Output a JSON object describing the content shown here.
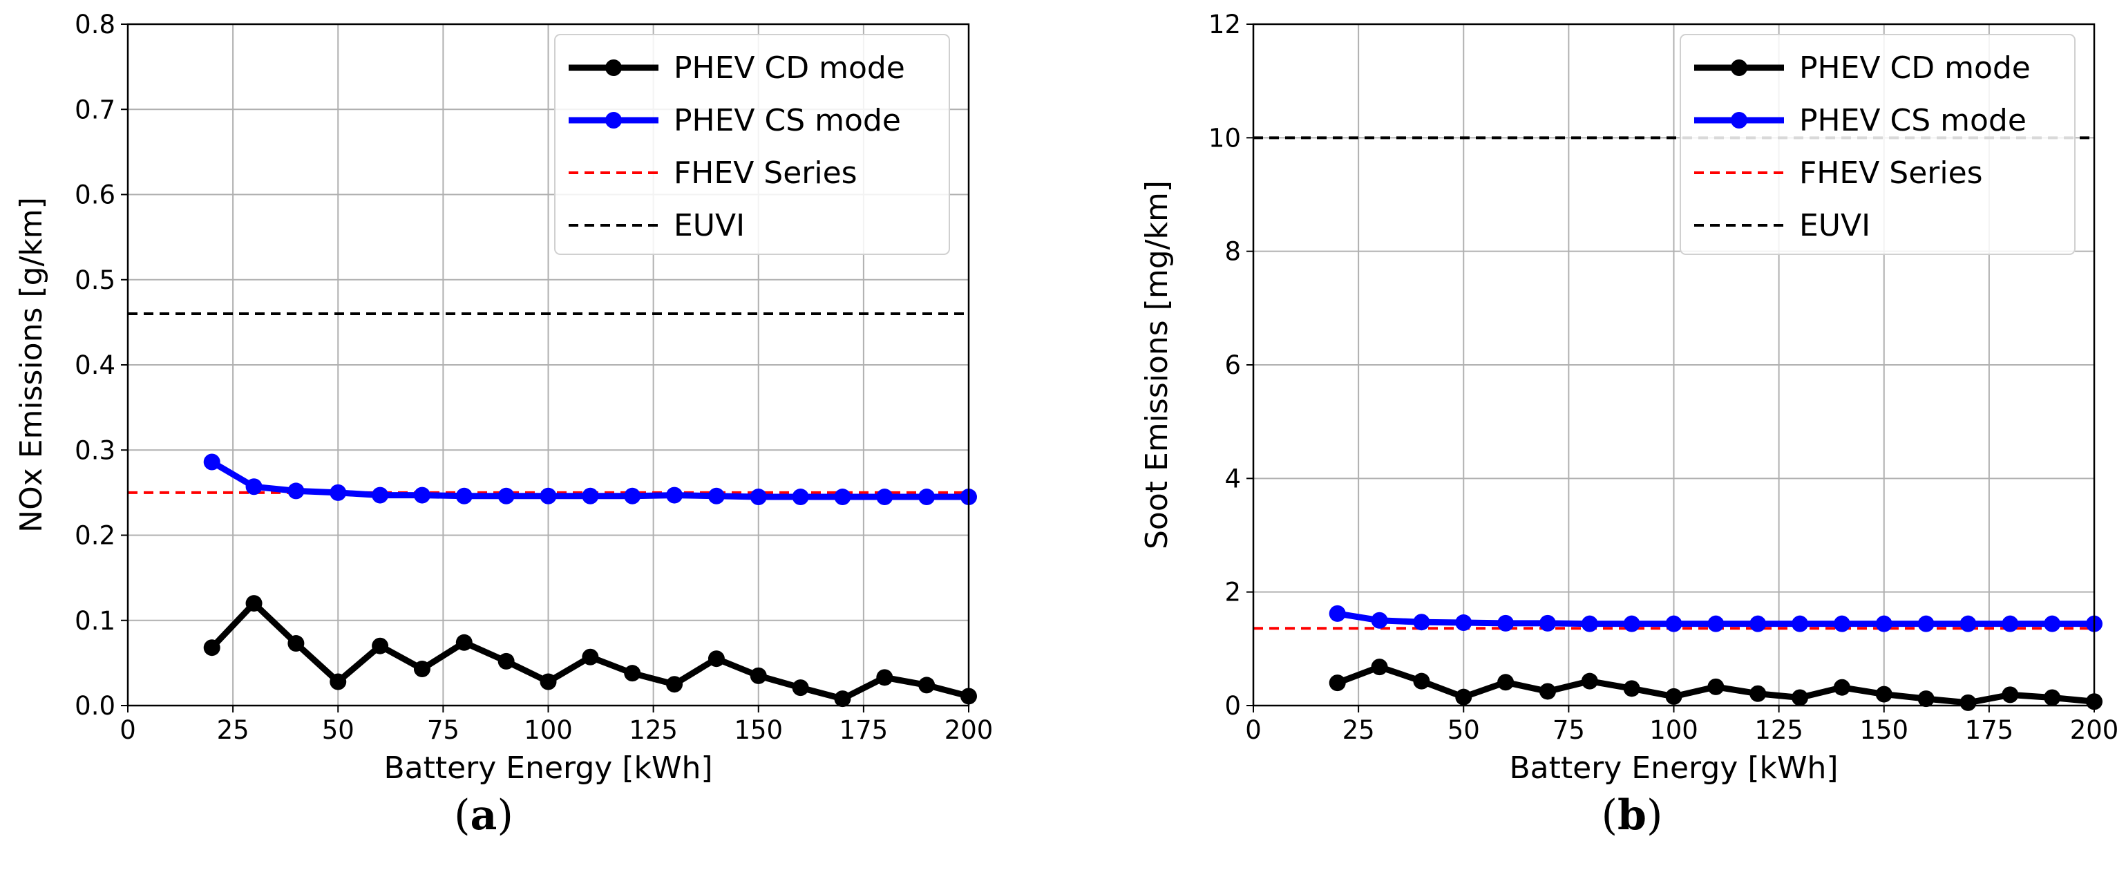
{
  "chart_data": [
    {
      "type": "line",
      "panel_label": "a",
      "caption_open": "(",
      "caption_close": ")",
      "xlabel": "Battery Energy [kWh]",
      "ylabel": "NOx Emissions [g/km]",
      "xlim": [
        0,
        200
      ],
      "ylim": [
        0,
        0.8
      ],
      "xticks": [
        0,
        25,
        50,
        75,
        100,
        125,
        150,
        175,
        200
      ],
      "yticks": [
        0.0,
        0.1,
        0.2,
        0.3,
        0.4,
        0.5,
        0.6,
        0.7,
        0.8
      ],
      "ytick_labels": [
        "0.0",
        "0.1",
        "0.2",
        "0.3",
        "0.4",
        "0.5",
        "0.6",
        "0.7",
        "0.8"
      ],
      "grid": true,
      "legend_position": "top-right",
      "x": [
        20,
        30,
        40,
        50,
        60,
        70,
        80,
        90,
        100,
        110,
        120,
        130,
        140,
        150,
        160,
        170,
        180,
        190,
        200
      ],
      "series": [
        {
          "name": "PHEV CD mode",
          "color": "#000000",
          "style": "solid-marker",
          "values": [
            0.068,
            0.12,
            0.073,
            0.028,
            0.07,
            0.043,
            0.074,
            0.052,
            0.028,
            0.057,
            0.038,
            0.025,
            0.055,
            0.035,
            0.021,
            0.008,
            0.033,
            0.024,
            0.011
          ]
        },
        {
          "name": "PHEV CS mode",
          "color": "#0000ff",
          "style": "solid-marker",
          "values": [
            0.286,
            0.257,
            0.252,
            0.25,
            0.247,
            0.247,
            0.246,
            0.246,
            0.246,
            0.246,
            0.246,
            0.247,
            0.246,
            0.245,
            0.245,
            0.245,
            0.245,
            0.245,
            0.245
          ]
        },
        {
          "name": "FHEV Series",
          "color": "#ff0000",
          "style": "dashed",
          "constant": 0.25
        },
        {
          "name": "EUVI",
          "color": "#000000",
          "style": "dashed",
          "constant": 0.46
        }
      ]
    },
    {
      "type": "line",
      "panel_label": "b",
      "caption_open": "(",
      "caption_close": ")",
      "xlabel": "Battery Energy [kWh]",
      "ylabel": "Soot Emissions [mg/km]",
      "xlim": [
        0,
        200
      ],
      "ylim": [
        0,
        12
      ],
      "xticks": [
        0,
        25,
        50,
        75,
        100,
        125,
        150,
        175,
        200
      ],
      "yticks": [
        0,
        2,
        4,
        6,
        8,
        10,
        12
      ],
      "ytick_labels": [
        "0",
        "2",
        "4",
        "6",
        "8",
        "10",
        "12"
      ],
      "grid": true,
      "legend_position": "top-right",
      "x": [
        20,
        30,
        40,
        50,
        60,
        70,
        80,
        90,
        100,
        110,
        120,
        130,
        140,
        150,
        160,
        170,
        180,
        190,
        200
      ],
      "series": [
        {
          "name": "PHEV CD mode",
          "color": "#000000",
          "style": "solid-marker",
          "values": [
            0.4,
            0.68,
            0.43,
            0.15,
            0.41,
            0.25,
            0.43,
            0.3,
            0.16,
            0.33,
            0.21,
            0.14,
            0.32,
            0.2,
            0.12,
            0.05,
            0.19,
            0.14,
            0.07
          ]
        },
        {
          "name": "PHEV CS mode",
          "color": "#0000ff",
          "style": "solid-marker",
          "values": [
            1.62,
            1.5,
            1.47,
            1.46,
            1.45,
            1.45,
            1.44,
            1.44,
            1.44,
            1.44,
            1.44,
            1.44,
            1.44,
            1.44,
            1.44,
            1.44,
            1.44,
            1.44,
            1.44
          ]
        },
        {
          "name": "FHEV Series",
          "color": "#ff0000",
          "style": "dashed",
          "constant": 1.36
        },
        {
          "name": "EUVI",
          "color": "#000000",
          "style": "dashed",
          "constant": 10
        }
      ]
    }
  ]
}
